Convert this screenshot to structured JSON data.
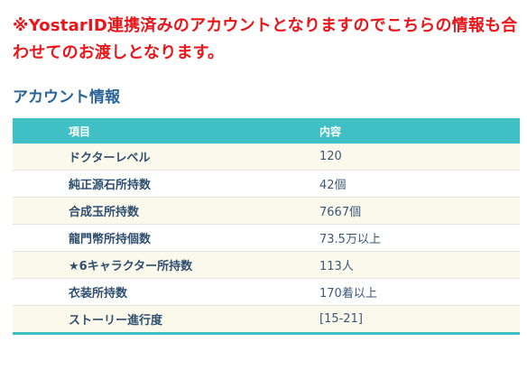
{
  "notice": {
    "line1": "※YostarID連携済みのアカウントとなりますのでこちらの情報も合",
    "line2": "わせてのお渡しとなります。"
  },
  "section_title": "アカウント情報",
  "table": {
    "headers": [
      "項目",
      "内容"
    ],
    "rows": [
      {
        "label": "ドクターレベル",
        "value": "120"
      },
      {
        "label": "純正源石所持数",
        "value": "42個"
      },
      {
        "label": "合成玉所持数",
        "value": "7667個"
      },
      {
        "label": "龍門幣所持個数",
        "value": "73.5万以上"
      },
      {
        "label": "★6キャラクター所持数",
        "value": "113人"
      },
      {
        "label": "衣装所持数",
        "value": "170着以上"
      },
      {
        "label": "ストーリー進行度",
        "value": "[15-21]"
      }
    ]
  },
  "colors": {
    "notice": "#e8161a",
    "title": "#2a6496",
    "header_bg": "#40bfc4",
    "row_alt": "#fbf9ec"
  }
}
